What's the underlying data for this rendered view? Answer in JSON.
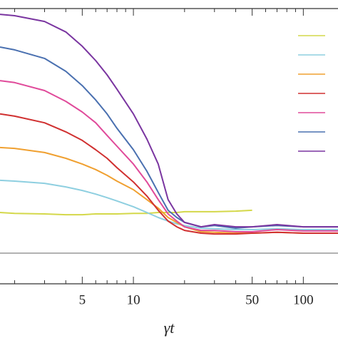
{
  "chart_data": {
    "type": "line",
    "x_label": "γt",
    "xscale": "log",
    "x": [
      1.64,
      2,
      3,
      4,
      5,
      6,
      7,
      8,
      10,
      12,
      14,
      16,
      18,
      20,
      25,
      30,
      40,
      50,
      70,
      100,
      160
    ],
    "xlim": [
      1.64,
      160
    ],
    "ylim": [
      0,
      1
    ],
    "xticks": [
      5,
      10,
      50,
      100
    ],
    "xminor": [
      2,
      3,
      4,
      6,
      7,
      8,
      9,
      20,
      30,
      40,
      60,
      70,
      80,
      90
    ],
    "legend": "upper right",
    "series": [
      {
        "color": "#d4d84a",
        "values": [
          0.259,
          0.256,
          0.254,
          0.251,
          0.251,
          0.254,
          0.254,
          0.254,
          0.256,
          0.256,
          0.259,
          0.259,
          0.259,
          0.262,
          0.262,
          0.262,
          0.264,
          0.267,
          null,
          null,
          null
        ]
      },
      {
        "color": "#8ecfe0",
        "values": [
          0.376,
          0.373,
          0.365,
          0.352,
          0.339,
          0.326,
          0.313,
          0.301,
          0.28,
          0.259,
          0.241,
          0.228,
          0.218,
          0.212,
          0.202,
          0.2,
          0.197,
          0.197,
          0.2,
          0.197,
          0.197
        ]
      },
      {
        "color": "#f0a030",
        "values": [
          0.495,
          0.492,
          0.477,
          0.456,
          0.435,
          0.415,
          0.394,
          0.373,
          0.342,
          0.306,
          0.275,
          0.241,
          0.223,
          0.207,
          0.189,
          0.187,
          0.184,
          0.184,
          0.187,
          0.184,
          0.184
        ]
      },
      {
        "color": "#d03030",
        "values": [
          0.617,
          0.609,
          0.585,
          0.552,
          0.521,
          0.487,
          0.456,
          0.422,
          0.37,
          0.319,
          0.267,
          0.228,
          0.207,
          0.194,
          0.184,
          0.181,
          0.181,
          0.184,
          0.187,
          0.184,
          0.184
        ]
      },
      {
        "color": "#e04a9a",
        "values": [
          0.738,
          0.731,
          0.702,
          0.663,
          0.624,
          0.585,
          0.539,
          0.5,
          0.435,
          0.37,
          0.306,
          0.254,
          0.228,
          0.207,
          0.194,
          0.194,
          0.189,
          0.189,
          0.197,
          0.192,
          0.192
        ]
      },
      {
        "color": "#4a70b0",
        "values": [
          0.86,
          0.85,
          0.819,
          0.772,
          0.72,
          0.668,
          0.617,
          0.565,
          0.487,
          0.409,
          0.332,
          0.267,
          0.241,
          0.223,
          0.207,
          0.212,
          0.202,
          0.207,
          0.212,
          0.207,
          0.207
        ]
      },
      {
        "color": "#7a35a0",
        "values": [
          0.979,
          0.974,
          0.953,
          0.915,
          0.863,
          0.811,
          0.759,
          0.707,
          0.617,
          0.526,
          0.435,
          0.306,
          0.254,
          0.223,
          0.207,
          0.215,
          0.207,
          0.207,
          0.215,
          0.207,
          0.207
        ]
      }
    ]
  }
}
